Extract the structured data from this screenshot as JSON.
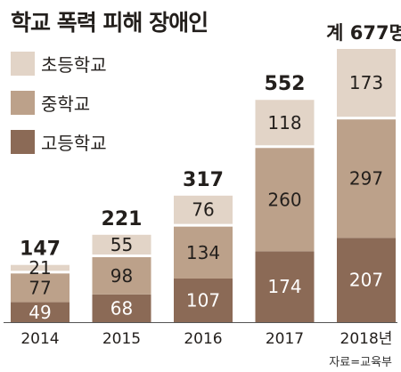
{
  "chart_data": {
    "type": "bar",
    "stacked": true,
    "title": "학교 폭력 피해 장애인",
    "categories": [
      "2014",
      "2015",
      "2016",
      "2017",
      "2018년"
    ],
    "series": [
      {
        "name": "고등학교",
        "values": [
          49,
          68,
          107,
          174,
          207
        ],
        "color": "#8b6a56"
      },
      {
        "name": "중학교",
        "values": [
          77,
          98,
          134,
          260,
          297
        ],
        "color": "#bca18a"
      },
      {
        "name": "초등학교",
        "values": [
          21,
          55,
          76,
          118,
          173
        ],
        "color": "#e2d4c7"
      }
    ],
    "totals": [
      "147",
      "221",
      "317",
      "552",
      "계 677명"
    ],
    "legend_order": [
      "초등학교",
      "중학교",
      "고등학교"
    ],
    "legend_position": "top-left",
    "grid": false,
    "ylim": [
      0,
      677
    ]
  },
  "source": "자료=교육부",
  "colors": {
    "label_light": "#ffffff",
    "label_dark": "#231f1c",
    "baseline": "#555555"
  }
}
